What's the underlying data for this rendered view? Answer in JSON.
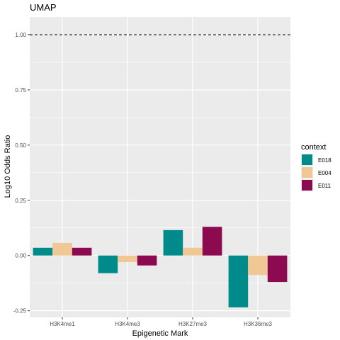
{
  "chart_data": {
    "type": "bar",
    "title": "UMAP",
    "xlabel": "Epigenetic Mark",
    "ylabel": "Log10 Odds Ratio",
    "categories": [
      "H3K4me1",
      "H3K4me3",
      "H3K27me3",
      "H3K36me3"
    ],
    "series": [
      {
        "name": "E018",
        "color": "#008b8b",
        "values": [
          0.035,
          -0.08,
          0.115,
          -0.235
        ]
      },
      {
        "name": "E004",
        "color": "#f0c896",
        "values": [
          0.057,
          -0.03,
          0.035,
          -0.088
        ]
      },
      {
        "name": "E011",
        "color": "#8b0a50",
        "values": [
          0.035,
          -0.045,
          0.13,
          -0.12
        ]
      }
    ],
    "ylim": [
      -0.28,
      1.08
    ],
    "yticks": [
      -0.25,
      0,
      0.25,
      0.5,
      0.75,
      1.0
    ],
    "ytick_labels": [
      "-0.25",
      "0.00",
      "0.25",
      "0.50",
      "0.75",
      "1.00"
    ],
    "reference_line": {
      "y": 1.0,
      "style": "dashed",
      "color": "#000000"
    },
    "legend": {
      "title": "context",
      "position": "right"
    },
    "grid": true,
    "panel_background": "#ebebeb"
  }
}
